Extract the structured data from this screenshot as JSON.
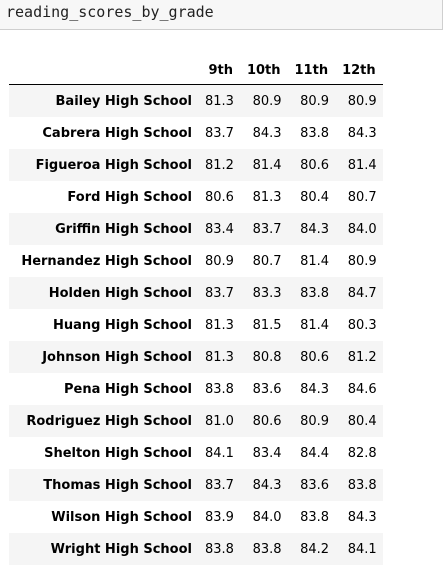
{
  "code_cell": {
    "text": "reading_scores_by_grade"
  },
  "table": {
    "columns": [
      "9th",
      "10th",
      "11th",
      "12th"
    ],
    "rows": [
      {
        "school": "Bailey High School",
        "values": [
          "81.3",
          "80.9",
          "80.9",
          "80.9"
        ]
      },
      {
        "school": "Cabrera High School",
        "values": [
          "83.7",
          "84.3",
          "83.8",
          "84.3"
        ]
      },
      {
        "school": "Figueroa High School",
        "values": [
          "81.2",
          "81.4",
          "80.6",
          "81.4"
        ]
      },
      {
        "school": "Ford High School",
        "values": [
          "80.6",
          "81.3",
          "80.4",
          "80.7"
        ]
      },
      {
        "school": "Griffin High School",
        "values": [
          "83.4",
          "83.7",
          "84.3",
          "84.0"
        ]
      },
      {
        "school": "Hernandez High School",
        "values": [
          "80.9",
          "80.7",
          "81.4",
          "80.9"
        ]
      },
      {
        "school": "Holden High School",
        "values": [
          "83.7",
          "83.3",
          "83.8",
          "84.7"
        ]
      },
      {
        "school": "Huang High School",
        "values": [
          "81.3",
          "81.5",
          "81.4",
          "80.3"
        ]
      },
      {
        "school": "Johnson High School",
        "values": [
          "81.3",
          "80.8",
          "80.6",
          "81.2"
        ]
      },
      {
        "school": "Pena High School",
        "values": [
          "83.8",
          "83.6",
          "84.3",
          "84.6"
        ]
      },
      {
        "school": "Rodriguez High School",
        "values": [
          "81.0",
          "80.6",
          "80.9",
          "80.4"
        ]
      },
      {
        "school": "Shelton High School",
        "values": [
          "84.1",
          "83.4",
          "84.4",
          "82.8"
        ]
      },
      {
        "school": "Thomas High School",
        "values": [
          "83.7",
          "84.3",
          "83.6",
          "83.8"
        ]
      },
      {
        "school": "Wilson High School",
        "values": [
          "83.9",
          "84.0",
          "83.8",
          "84.3"
        ]
      },
      {
        "school": "Wright High School",
        "values": [
          "83.8",
          "83.8",
          "84.2",
          "84.1"
        ]
      }
    ]
  }
}
